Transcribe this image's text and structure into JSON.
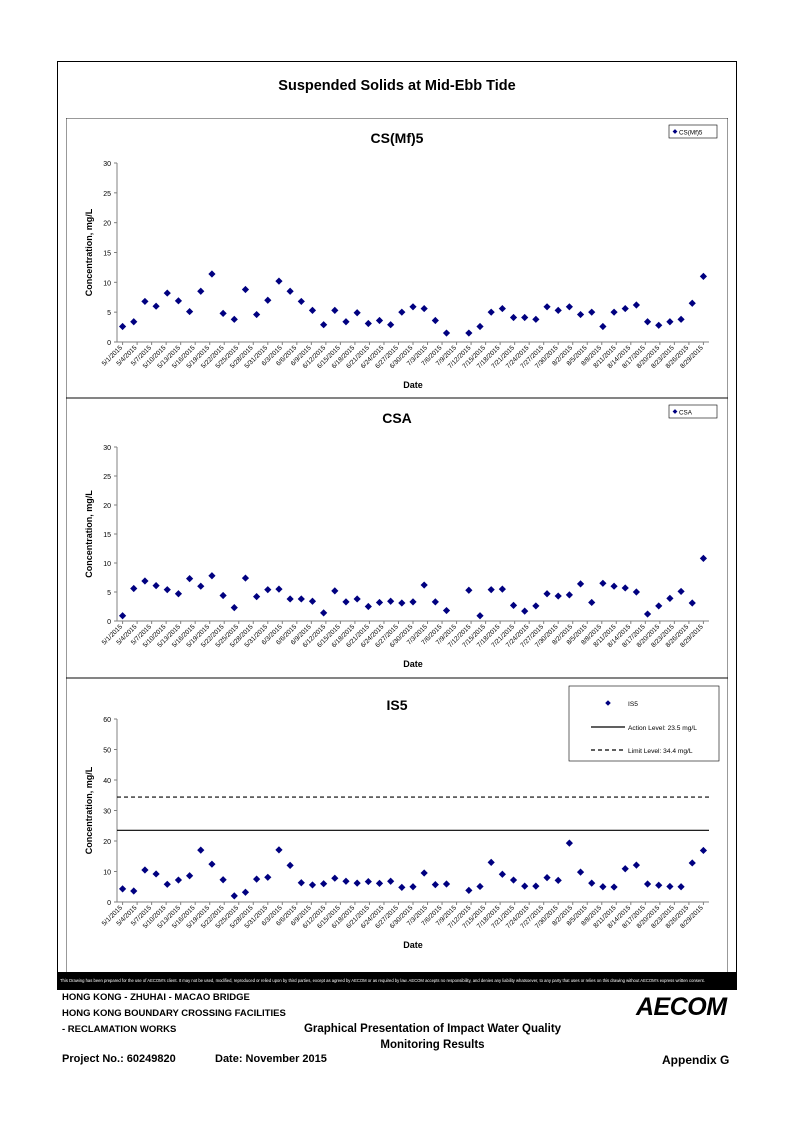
{
  "page_title": "Suspended Solids at Mid-Ebb Tide",
  "disclaimer": "This Drawing has been prepared for the use of AECOM's client. It may not be used, modified, reproduced or relied upon by third parties, except as agreed by AECOM or as required by law. AECOM accepts no responsibility, and denies any liability whatsoever, to any party that uses or relies on this drawing without AECOM's express written consent.",
  "footer": {
    "project_line1": "HONG KONG - ZHUHAI - MACAO BRIDGE",
    "project_line2": "HONG KONG BOUNDARY CROSSING FACILITIES",
    "project_line3": "- RECLAMATION WORKS",
    "project_no": "Project No.: 60249820",
    "date": "Date: November 2015",
    "logo": "AECOM",
    "center_title_line1": "Graphical Presentation of Impact Water Quality",
    "center_title_line2": "Monitoring Results",
    "appendix": "Appendix G"
  },
  "colors": {
    "marker": "#000080",
    "line": "#000000"
  },
  "chart_data": [
    {
      "type": "scatter",
      "title": "CS(Mf)5",
      "xlabel": "Date",
      "ylabel": "Concentration, mg/L",
      "ylim": [
        0,
        30
      ],
      "yticks": [
        0,
        5,
        10,
        15,
        20,
        25,
        30
      ],
      "grid": false,
      "legend": "top-right",
      "series": [
        {
          "name": "CS(Mf)5",
          "marker": "diamond",
          "y": [
            2.6,
            3.4,
            6.8,
            6.0,
            8.2,
            6.9,
            5.1,
            8.5,
            11.4,
            4.8,
            3.8,
            8.8,
            4.6,
            7.0,
            10.2,
            8.5,
            6.8,
            5.3,
            2.9,
            5.3,
            3.4,
            4.9,
            3.1,
            3.6,
            2.9,
            5.0,
            5.9,
            5.6,
            3.6,
            1.5,
            null,
            1.5,
            2.6,
            5.0,
            5.6,
            4.1,
            4.1,
            3.8,
            5.9,
            5.3,
            5.9,
            4.6,
            5.0,
            2.6,
            5.0,
            5.6,
            6.2,
            3.4,
            2.8,
            3.4,
            3.8,
            6.5,
            11.0
          ]
        }
      ],
      "x_tick_labels": [
        "5/1/2015",
        "5/4/2015",
        "5/7/2015",
        "5/10/2015",
        "5/13/2015",
        "5/16/2015",
        "5/19/2015",
        "5/22/2015",
        "5/25/2015",
        "5/28/2015",
        "5/31/2015",
        "6/3/2015",
        "6/6/2015",
        "6/9/2015",
        "6/12/2015",
        "6/15/2015",
        "6/18/2015",
        "6/21/2015",
        "6/24/2015",
        "6/27/2015",
        "6/30/2015",
        "7/3/2015",
        "7/6/2015",
        "7/9/2015",
        "7/12/2015",
        "7/15/2015",
        "7/18/2015",
        "7/21/2015",
        "7/24/2015",
        "7/27/2015",
        "7/30/2015",
        "8/2/2015",
        "8/5/2015",
        "8/8/2015",
        "8/11/2015",
        "8/14/2015",
        "8/17/2015",
        "8/20/2015",
        "8/23/2015",
        "8/26/2015",
        "8/29/2015"
      ]
    },
    {
      "type": "scatter",
      "title": "CSA",
      "xlabel": "Date",
      "ylabel": "Concentration, mg/L",
      "ylim": [
        0,
        30
      ],
      "yticks": [
        0,
        5,
        10,
        15,
        20,
        25,
        30
      ],
      "grid": false,
      "legend": "top-right",
      "series": [
        {
          "name": "CSA",
          "marker": "diamond",
          "y": [
            0.9,
            5.6,
            6.9,
            6.1,
            5.4,
            4.7,
            7.3,
            6.0,
            7.8,
            4.4,
            2.3,
            7.4,
            4.2,
            5.4,
            5.5,
            3.8,
            3.8,
            3.4,
            1.4,
            5.2,
            3.3,
            3.8,
            2.5,
            3.2,
            3.4,
            3.1,
            3.3,
            6.2,
            3.3,
            1.8,
            null,
            5.3,
            0.9,
            5.4,
            5.5,
            2.7,
            1.7,
            2.6,
            4.7,
            4.3,
            4.5,
            6.4,
            3.2,
            6.5,
            6.0,
            5.7,
            5.0,
            1.2,
            2.6,
            3.9,
            5.1,
            3.1,
            10.8
          ]
        }
      ],
      "x_tick_labels": [
        "5/1/2015",
        "5/4/2015",
        "5/7/2015",
        "5/10/2015",
        "5/13/2015",
        "5/16/2015",
        "5/19/2015",
        "5/22/2015",
        "5/25/2015",
        "5/28/2015",
        "5/31/2015",
        "6/3/2015",
        "6/6/2015",
        "6/9/2015",
        "6/12/2015",
        "6/15/2015",
        "6/18/2015",
        "6/21/2015",
        "6/24/2015",
        "6/27/2015",
        "6/30/2015",
        "7/3/2015",
        "7/6/2015",
        "7/9/2015",
        "7/12/2015",
        "7/15/2015",
        "7/18/2015",
        "7/21/2015",
        "7/24/2015",
        "7/27/2015",
        "7/30/2015",
        "8/2/2015",
        "8/5/2015",
        "8/8/2015",
        "8/11/2015",
        "8/14/2015",
        "8/17/2015",
        "8/20/2015",
        "8/23/2015",
        "8/26/2015",
        "8/29/2015"
      ]
    },
    {
      "type": "scatter",
      "title": "IS5",
      "xlabel": "Date",
      "ylabel": "Concentration, mg/L",
      "ylim": [
        0,
        60
      ],
      "yticks": [
        0,
        10,
        20,
        30,
        40,
        50,
        60
      ],
      "grid": false,
      "legend": "top-right",
      "series": [
        {
          "name": "IS5",
          "marker": "diamond",
          "y": [
            4.3,
            3.6,
            10.5,
            9.2,
            5.8,
            7.2,
            8.6,
            17.0,
            12.4,
            7.3,
            2.0,
            3.2,
            7.5,
            8.1,
            17.1,
            12.0,
            6.3,
            5.6,
            6.0,
            7.8,
            6.8,
            6.2,
            6.7,
            6.1,
            6.8,
            4.8,
            5.0,
            9.5,
            5.7,
            5.9,
            null,
            3.8,
            5.1,
            13.0,
            9.1,
            7.2,
            5.2,
            5.2,
            8.0,
            7.1,
            19.3,
            9.8,
            6.2,
            5.0,
            4.9,
            10.9,
            12.1,
            5.9,
            5.5,
            5.1,
            5.0,
            12.8,
            16.9
          ]
        },
        {
          "name": "Action Level: 23.5 mg/L",
          "style": "solid",
          "value": 23.5
        },
        {
          "name": "Limit Level: 34.4 mg/L",
          "style": "dashed",
          "value": 34.4
        }
      ],
      "x_tick_labels": [
        "5/1/2015",
        "5/4/2015",
        "5/7/2015",
        "5/10/2015",
        "5/13/2015",
        "5/16/2015",
        "5/19/2015",
        "5/22/2015",
        "5/25/2015",
        "5/28/2015",
        "5/31/2015",
        "6/3/2015",
        "6/6/2015",
        "6/9/2015",
        "6/12/2015",
        "6/15/2015",
        "6/18/2015",
        "6/21/2015",
        "6/24/2015",
        "6/27/2015",
        "6/30/2015",
        "7/3/2015",
        "7/6/2015",
        "7/9/2015",
        "7/12/2015",
        "7/15/2015",
        "7/18/2015",
        "7/21/2015",
        "7/24/2015",
        "7/27/2015",
        "7/30/2015",
        "8/2/2015",
        "8/5/2015",
        "8/8/2015",
        "8/11/2015",
        "8/14/2015",
        "8/17/2015",
        "8/20/2015",
        "8/23/2015",
        "8/26/2015",
        "8/29/2015"
      ]
    }
  ]
}
